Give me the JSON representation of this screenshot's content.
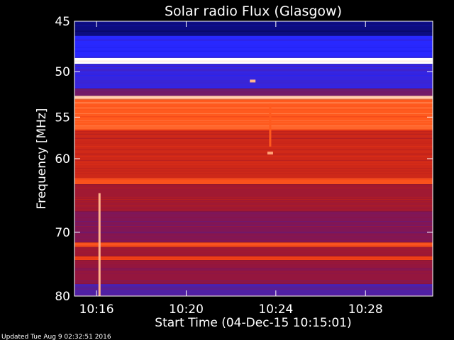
{
  "chart_data": {
    "type": "heatmap",
    "title": "Solar radio Flux (Glasgow)",
    "xlabel": "Start Time (04-Dec-15 10:15:01)",
    "ylabel": "Frequency [MHz]",
    "x_unit": "time",
    "x_range": [
      "10:15:01",
      "10:31:00"
    ],
    "x_ticks": [
      "10:16",
      "10:20",
      "10:24",
      "10:28"
    ],
    "y_range": [
      45,
      80
    ],
    "y_ticks": [
      45,
      50,
      55,
      60,
      70,
      80
    ],
    "y_scale": "log",
    "y_direction": "increasing-downward",
    "colormap": [
      "#000028",
      "#0a0a6e",
      "#1414c8",
      "#2828ff",
      "#5a1e8c",
      "#8c1446",
      "#b41e1e",
      "#e63214",
      "#ff5a1e",
      "#ffb48c",
      "#ffffff"
    ],
    "bands": [
      {
        "from_mhz": 45.0,
        "to_mhz": 46.4,
        "level": 0.12
      },
      {
        "from_mhz": 46.4,
        "to_mhz": 48.6,
        "level": 0.3
      },
      {
        "from_mhz": 48.6,
        "to_mhz": 49.2,
        "level": 1.0
      },
      {
        "from_mhz": 49.2,
        "to_mhz": 51.8,
        "level": 0.33
      },
      {
        "from_mhz": 51.8,
        "to_mhz": 52.6,
        "level": 0.45
      },
      {
        "from_mhz": 52.6,
        "to_mhz": 53.0,
        "level": 0.92
      },
      {
        "from_mhz": 53.0,
        "to_mhz": 56.5,
        "level": 0.8
      },
      {
        "from_mhz": 56.5,
        "to_mhz": 62.5,
        "level": 0.65
      },
      {
        "from_mhz": 62.5,
        "to_mhz": 63.3,
        "level": 0.78
      },
      {
        "from_mhz": 63.3,
        "to_mhz": 67.0,
        "level": 0.55
      },
      {
        "from_mhz": 67.0,
        "to_mhz": 71.5,
        "level": 0.48
      },
      {
        "from_mhz": 71.5,
        "to_mhz": 72.2,
        "level": 0.76
      },
      {
        "from_mhz": 72.2,
        "to_mhz": 73.6,
        "level": 0.55
      },
      {
        "from_mhz": 73.6,
        "to_mhz": 74.2,
        "level": 0.74
      },
      {
        "from_mhz": 74.2,
        "to_mhz": 78.0,
        "level": 0.52
      },
      {
        "from_mhz": 78.0,
        "to_mhz": 80.0,
        "level": 0.38
      }
    ],
    "features": [
      {
        "kind": "vertical-line",
        "time": "10:23:44",
        "from_mhz": 53.5,
        "to_mhz": 58.5,
        "level": 0.8
      },
      {
        "kind": "spot",
        "time": "10:23:45",
        "mhz": 59.3,
        "level": 0.88
      },
      {
        "kind": "vertical-line",
        "time": "10:16:07",
        "from_mhz": 64.5,
        "to_mhz": 80.0,
        "level": 0.9
      },
      {
        "kind": "spot",
        "time": "10:22:58",
        "mhz": 51.0,
        "level": 0.9
      }
    ]
  },
  "footer": {
    "updated": "Updated Tue Aug  9 02:32:51 2016"
  }
}
